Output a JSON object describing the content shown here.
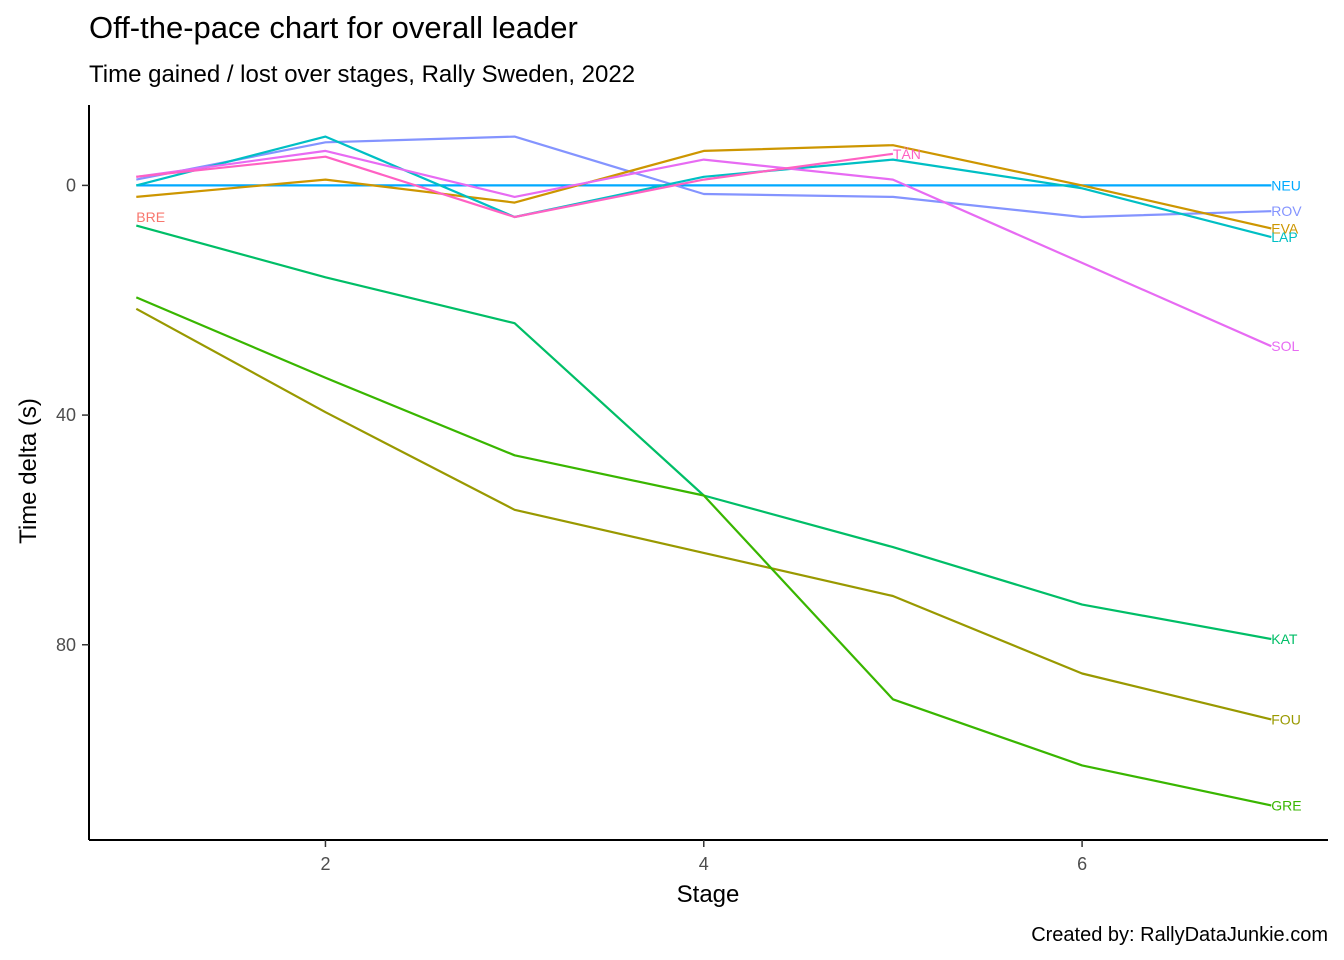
{
  "chart_data": {
    "type": "line",
    "title": "Off-the-pace chart for overall leader",
    "subtitle": "Time gained / lost over stages, Rally Sweden, 2022",
    "xlabel": "Stage",
    "ylabel": "Time delta (s)",
    "caption": "Created by: RallyDataJunkie.com",
    "x_ticks": [
      2,
      4,
      6
    ],
    "y_ticks": [
      0,
      40,
      80
    ],
    "xlim": [
      0.75,
      7.3
    ],
    "ylim": [
      -14,
      114
    ],
    "y_reversed": true,
    "legend": "none",
    "grid": false,
    "series": [
      {
        "name": "NEU",
        "color": "#00A9FF",
        "x": [
          1,
          2,
          3,
          4,
          5,
          6,
          7
        ],
        "values": [
          0,
          0,
          0,
          0,
          0,
          0,
          0
        ],
        "label_at": "end"
      },
      {
        "name": "ROV",
        "color": "#8494FF",
        "x": [
          1,
          2,
          3,
          4,
          5,
          6,
          7
        ],
        "values": [
          -1,
          -7.5,
          -8.5,
          1.5,
          2,
          5.5,
          4.5
        ],
        "label_at": "end"
      },
      {
        "name": "EVA",
        "color": "#CD9600",
        "x": [
          1,
          2,
          3,
          4,
          5,
          6,
          7
        ],
        "values": [
          2,
          -1,
          3,
          -6,
          -7,
          0,
          7.5
        ],
        "label_at": "end"
      },
      {
        "name": "LAP",
        "color": "#00BFC4",
        "x": [
          1,
          2,
          3,
          4,
          5,
          6,
          7
        ],
        "values": [
          0,
          -8.5,
          5.5,
          -1.5,
          -4.5,
          0.5,
          9
        ],
        "label_at": "end"
      },
      {
        "name": "SOL",
        "color": "#E76BF3",
        "x": [
          1,
          2,
          3,
          4,
          5,
          6,
          7
        ],
        "values": [
          -1.5,
          -6,
          2,
          -4.5,
          -1,
          13.5,
          28
        ],
        "label_at": "end"
      },
      {
        "name": "TÄN",
        "color": "#FF61C3",
        "x": [
          1,
          2,
          3,
          4,
          5
        ],
        "values": [
          -1.5,
          -5,
          5.5,
          -1,
          -5.5
        ],
        "label_at": "end"
      },
      {
        "name": "BRE",
        "color": "#F8766D",
        "x": [
          1
        ],
        "values": [
          5.5
        ],
        "label_at": "end"
      },
      {
        "name": "KAT",
        "color": "#00BE67",
        "x": [
          1,
          2,
          3,
          4,
          5,
          6,
          7
        ],
        "values": [
          7,
          16,
          24,
          54,
          63,
          73,
          79
        ],
        "label_at": "end"
      },
      {
        "name": "FOU",
        "color": "#999900",
        "x": [
          1,
          2,
          3,
          4,
          5,
          6,
          7
        ],
        "values": [
          21.5,
          39.5,
          56.5,
          64,
          71.5,
          85,
          93
        ],
        "label_at": "end"
      },
      {
        "name": "GRE",
        "color": "#39B600",
        "x": [
          1,
          2,
          3,
          4,
          5,
          6,
          7
        ],
        "values": [
          19.5,
          33.5,
          47,
          54,
          89.5,
          101,
          108
        ],
        "label_at": "end"
      }
    ]
  }
}
